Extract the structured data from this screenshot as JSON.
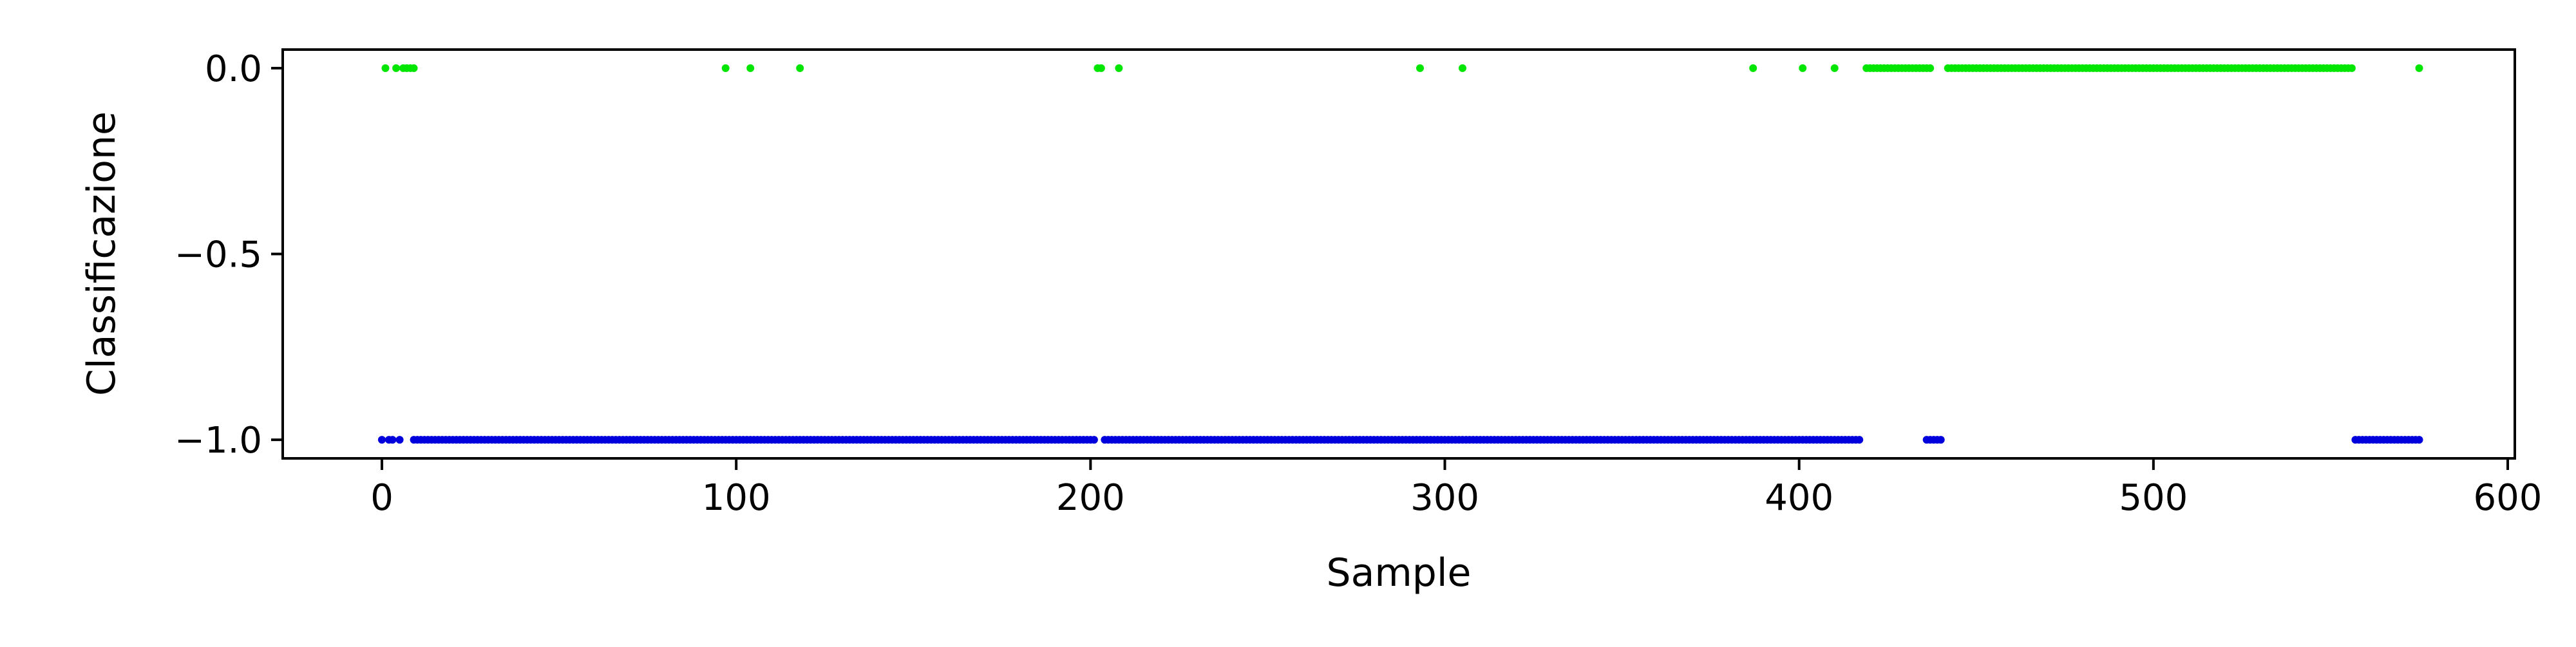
{
  "chart_data": {
    "type": "scatter",
    "title": "",
    "xlabel": "Sample",
    "ylabel": "Classificazione",
    "xlim": [
      -28,
      602
    ],
    "ylim": [
      -1.05,
      0.05
    ],
    "x_ticks": [
      0,
      100,
      200,
      300,
      400,
      500,
      600
    ],
    "x_tick_labels": [
      "0",
      "100",
      "200",
      "300",
      "400",
      "500",
      "600"
    ],
    "y_ticks": [
      0.0,
      -0.5,
      -1.0
    ],
    "y_tick_labels": [
      "0.0",
      "−0.5",
      "−1.0"
    ],
    "grid": false,
    "legend": "none",
    "series": [
      {
        "color": "#00e600",
        "y": 0.0,
        "x_points": [
          1,
          4,
          6,
          7,
          8,
          9,
          97,
          104,
          118,
          202,
          203,
          208,
          293,
          305,
          387,
          401,
          410
        ],
        "x_ranges": [
          [
            419,
            437
          ],
          [
            442,
            556
          ]
        ],
        "extra_points": [
          575
        ]
      },
      {
        "color": "#0000dd",
        "y": -1.0,
        "x_points": [
          0,
          2,
          3,
          5,
          9
        ],
        "x_ranges": [
          [
            10,
            201
          ],
          [
            204,
            417
          ],
          [
            436,
            440
          ],
          [
            557,
            575
          ]
        ],
        "extra_points": []
      }
    ]
  }
}
